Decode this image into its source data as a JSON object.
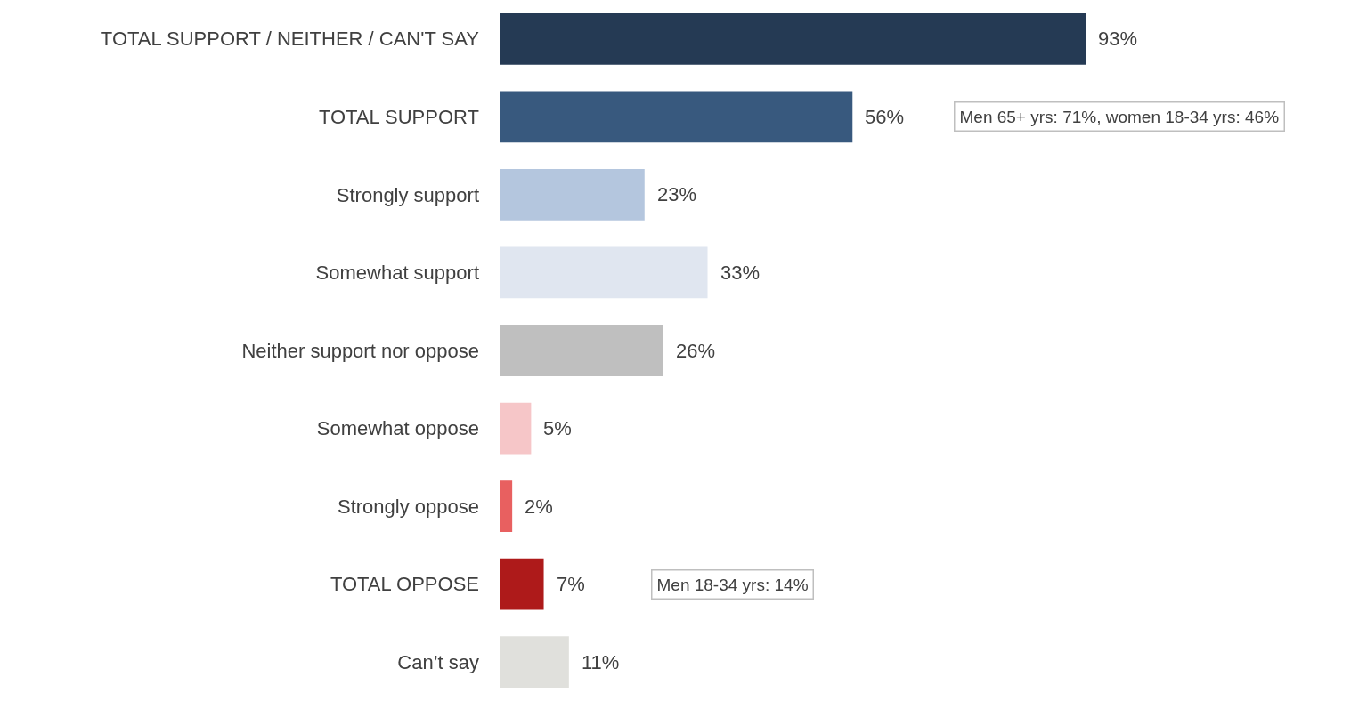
{
  "chart_data": {
    "type": "bar",
    "orientation": "horizontal",
    "categories": [
      "TOTAL SUPPORT / NEITHER / CAN'T SAY",
      "TOTAL SUPPORT",
      "Strongly support",
      "Somewhat support",
      "Neither support nor oppose",
      "Somewhat oppose",
      "Strongly oppose",
      "TOTAL OPPOSE",
      "Can’t say"
    ],
    "values": [
      93,
      56,
      23,
      33,
      26,
      5,
      2,
      7,
      11
    ],
    "value_labels": [
      "93%",
      "56%",
      "23%",
      "33%",
      "26%",
      "5%",
      "2%",
      "7%",
      "11%"
    ],
    "colors": [
      "#253a54",
      "#38597e",
      "#b4c6de",
      "#e0e6f0",
      "#bfbfbf",
      "#f6c6c8",
      "#e86060",
      "#ae1a1a",
      "#e0e0dc"
    ],
    "annotations": [
      "Men 65+ yrs: 71%, women 18-34 yrs: 46%",
      "Men 18-34 yrs: 14%"
    ]
  }
}
